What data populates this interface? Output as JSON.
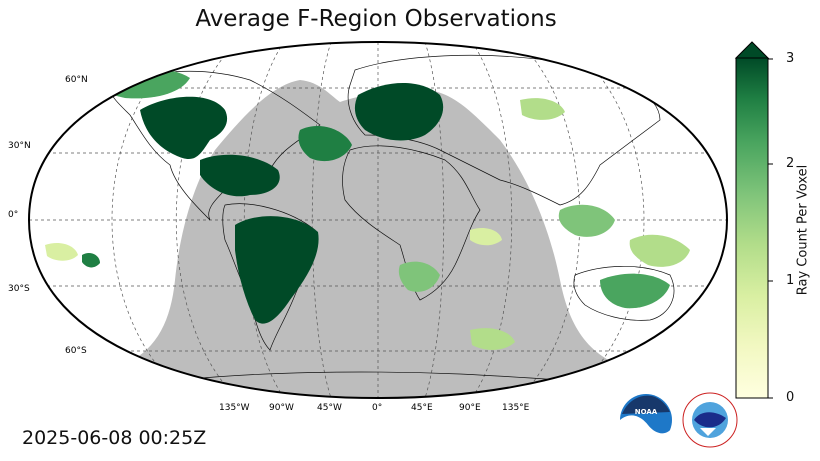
{
  "title": "Average F-Region Observations",
  "timestamp": "2025-06-08 00:25Z",
  "lat_labels": [
    "60°N",
    "30°N",
    "0°",
    "30°S",
    "60°S"
  ],
  "lon_labels": [
    "135°W",
    "90°W",
    "45°W",
    "0°",
    "45°E",
    "90°E",
    "135°E"
  ],
  "colorbar": {
    "label": "Ray Count Per Voxel",
    "ticks": [
      "0",
      "1",
      "2",
      "3"
    ],
    "min": 0,
    "max": 3,
    "extend": "max",
    "colors": [
      "#ffffe0",
      "#f2f8c2",
      "#d9efa2",
      "#b2dd8a",
      "#7fc47a",
      "#4aa55f",
      "#1f7f43",
      "#004a27"
    ]
  },
  "colors": {
    "ocean_day": "#ffffff",
    "night_shade": "#bdbdbd",
    "coastline": "#000000",
    "grid": "#555555"
  },
  "logos": {
    "noaa": "NOAA",
    "nws": "NATIONAL WEATHER SERVICE"
  }
}
